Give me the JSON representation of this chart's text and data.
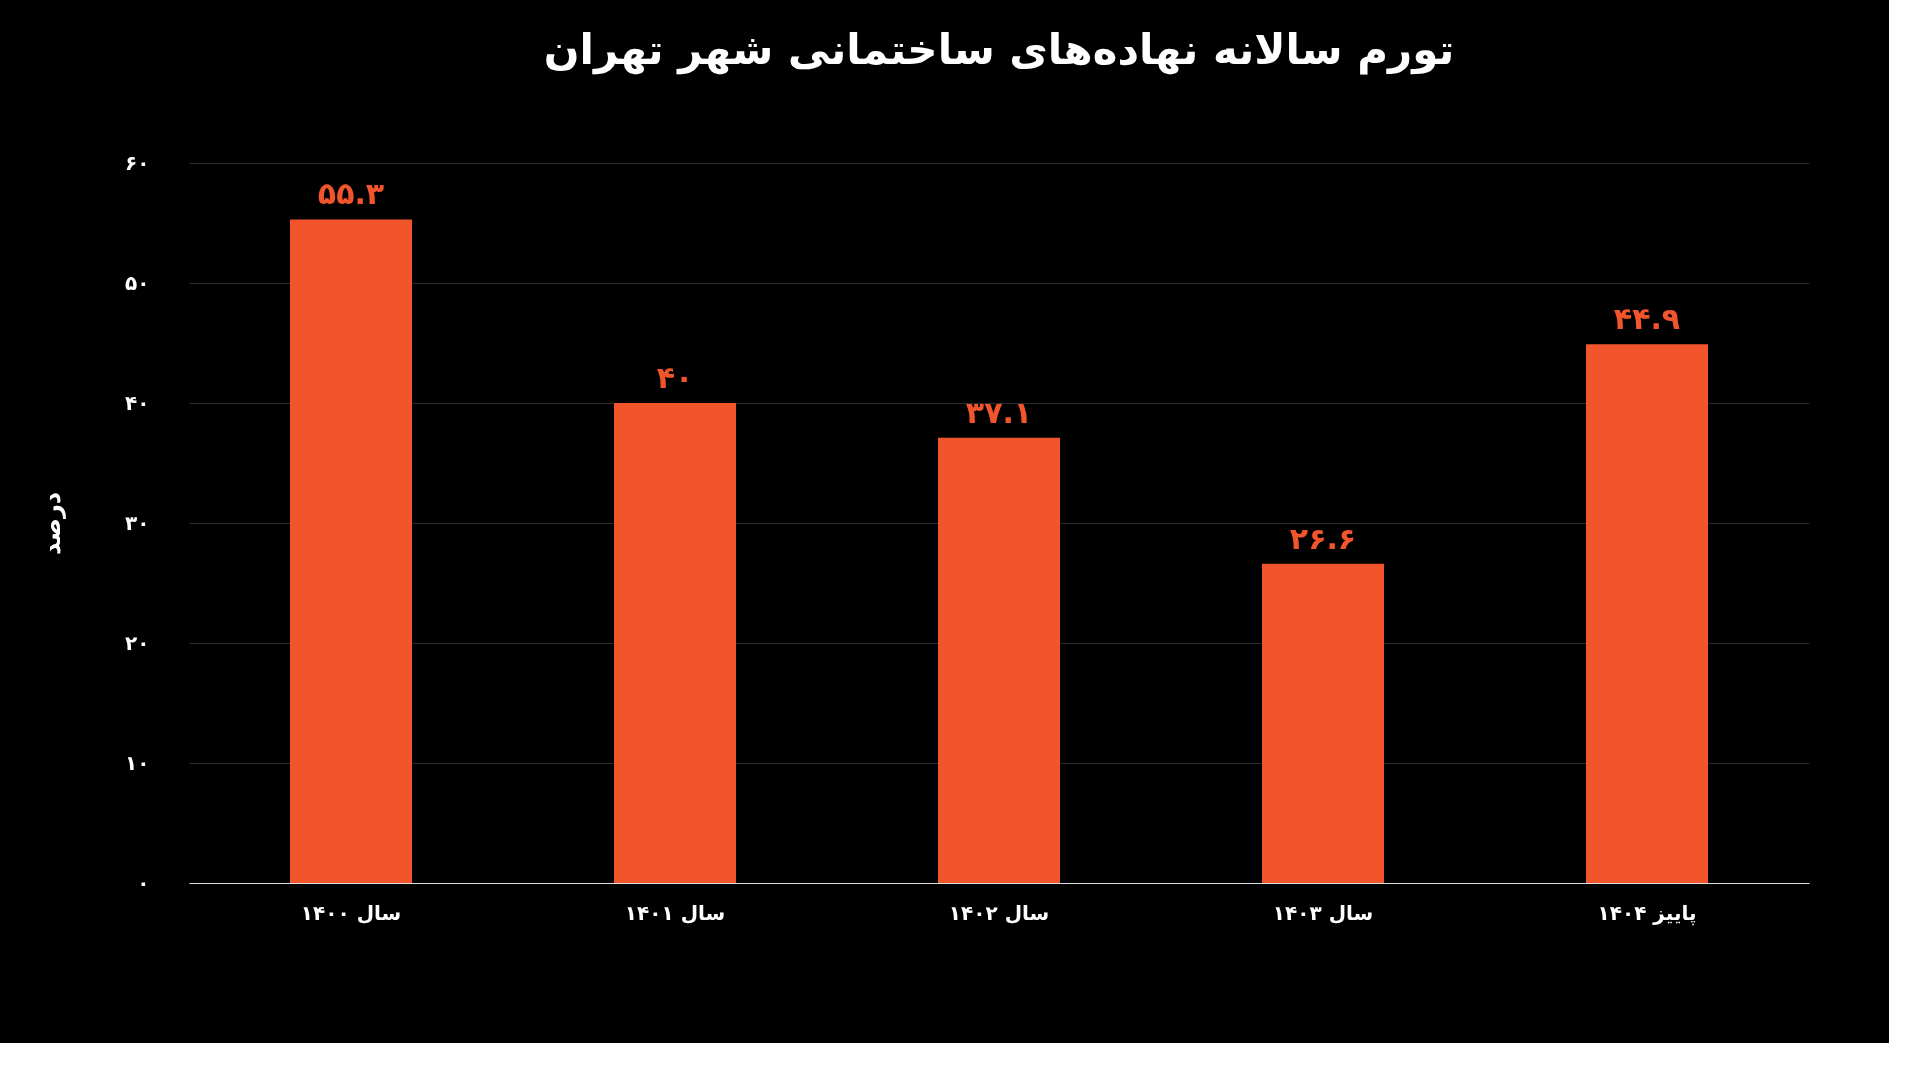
{
  "chart_data": {
    "type": "bar",
    "title": "تورم سالانه نهاده‌های ساختمانی شهر تهران",
    "ylabel": "درصد",
    "categories": [
      "سال ۱۴۰۰",
      "سال ۱۴۰۱",
      "سال ۱۴۰۲",
      "سال ۱۴۰۳",
      "پاییز ۱۴۰۴"
    ],
    "values": [
      55.3,
      40,
      37.1,
      26.6,
      44.9
    ],
    "value_labels": [
      "۵۵.۳",
      "۴۰",
      "۳۷.۱",
      "۲۶.۶",
      "۴۴.۹"
    ],
    "color": "#f2552c",
    "ylim": [
      0,
      60
    ],
    "yticks": [
      {
        "value": 0,
        "label": "۰"
      },
      {
        "value": 10,
        "label": "۱۰"
      },
      {
        "value": 20,
        "label": "۲۰"
      },
      {
        "value": 30,
        "label": "۳۰"
      },
      {
        "value": 40,
        "label": "۴۰"
      },
      {
        "value": 50,
        "label": "۵۰"
      },
      {
        "value": 60,
        "label": "۶۰"
      }
    ],
    "grid": "y"
  }
}
